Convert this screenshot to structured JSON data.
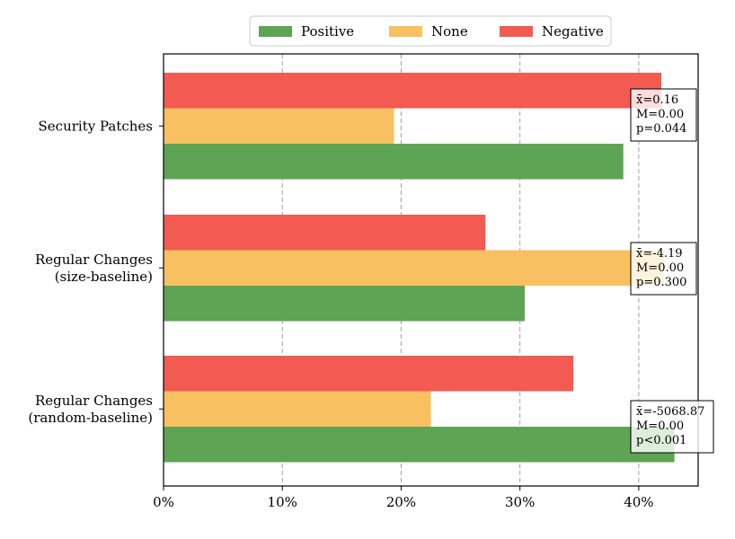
{
  "chart_data": {
    "type": "bar",
    "orientation": "horizontal",
    "categories": [
      [
        "Security Patches"
      ],
      [
        "Regular Changes",
        "(size-baseline)"
      ],
      [
        "Regular Changes",
        "(random-baseline)"
      ]
    ],
    "series": [
      {
        "name": "Negative",
        "color": "#f25a52",
        "values": [
          41.9,
          27.1,
          34.5
        ]
      },
      {
        "name": "None",
        "color": "#f9c061",
        "values": [
          19.4,
          42.1,
          22.5
        ]
      },
      {
        "name": "Positive",
        "color": "#5ea455",
        "values": [
          38.7,
          30.4,
          43.0
        ]
      }
    ],
    "legend": {
      "placement": "top-center",
      "order": [
        "Positive",
        "None",
        "Negative"
      ]
    },
    "annotations": [
      [
        "x̄=0.16",
        "M=0.00",
        "p=0.044"
      ],
      [
        "x̄=-4.19",
        "M=0.00",
        "p=0.300"
      ],
      [
        "x̄=-5068.87",
        "M=0.00",
        "p<0.001"
      ]
    ],
    "xlim": [
      0,
      45
    ],
    "xticks": [
      0,
      10,
      20,
      30,
      40
    ],
    "xtick_labels": [
      "0%",
      "10%",
      "20%",
      "30%",
      "40%"
    ],
    "grid": "vertical dashed",
    "title": "",
    "xlabel": "",
    "ylabel": ""
  }
}
